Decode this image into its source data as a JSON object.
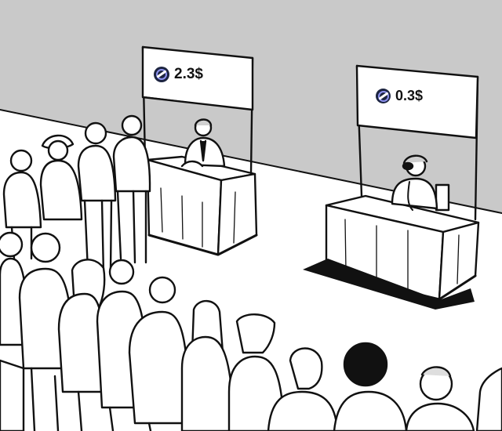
{
  "booths": {
    "left": {
      "price": "2.3$",
      "icon": "coin-icon"
    },
    "right": {
      "price": "0.3$",
      "icon": "coin-icon"
    }
  },
  "colors": {
    "wall": "#c9c9c9",
    "floor": "#ffffff",
    "ink": "#111111",
    "coin": "#1c2440",
    "coin_ring": "#8d92f0"
  }
}
